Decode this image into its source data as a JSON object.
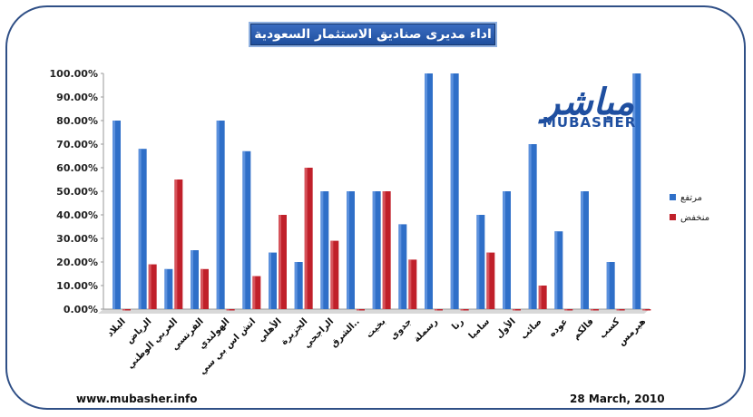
{
  "title": "اداء مديرى صناديق الاستثمار السعودية",
  "footer": {
    "url": "www.mubasher.info",
    "date": "28 March, 2010"
  },
  "logo": {
    "arabic": "مباشر",
    "english": "MUBASHER"
  },
  "colors": {
    "up": "#2f6fc8",
    "down": "#c0202a",
    "frame": "#2f4f86"
  },
  "chart_data": {
    "type": "bar",
    "title": "اداء مديرى صناديق الاستثمار السعودية",
    "ylim": [
      0,
      100
    ],
    "yticks": [
      "0.00%",
      "10.00%",
      "20.00%",
      "30.00%",
      "40.00%",
      "50.00%",
      "60.00%",
      "70.00%",
      "80.00%",
      "90.00%",
      "100.00%"
    ],
    "grid": false,
    "legend": "right",
    "categories": [
      "البلاد",
      "الرياض",
      "العربي الوطني",
      "الفرنسي",
      "الهولندي",
      "اتش اس بي سي",
      "الأهلي",
      "الجزيرة",
      "الراجحي",
      "الشرق..",
      "بخيت",
      "جدوى",
      "رسملة",
      "رنا",
      "سامبا",
      "الأول",
      "صائب",
      "عوده",
      "فالكم",
      "كسب",
      "هيرمس"
    ],
    "series": [
      {
        "name": "مرتفع",
        "values": [
          80,
          68,
          17,
          25,
          80,
          67,
          24,
          20,
          50,
          50,
          50,
          36,
          100,
          100,
          40,
          50,
          70,
          33,
          50,
          20,
          100
        ]
      },
      {
        "name": "منخفض",
        "values": [
          0,
          19,
          55,
          17,
          0,
          14,
          40,
          60,
          29,
          0,
          50,
          21,
          0,
          0,
          24,
          0,
          10,
          0,
          0,
          0,
          0
        ]
      }
    ]
  }
}
